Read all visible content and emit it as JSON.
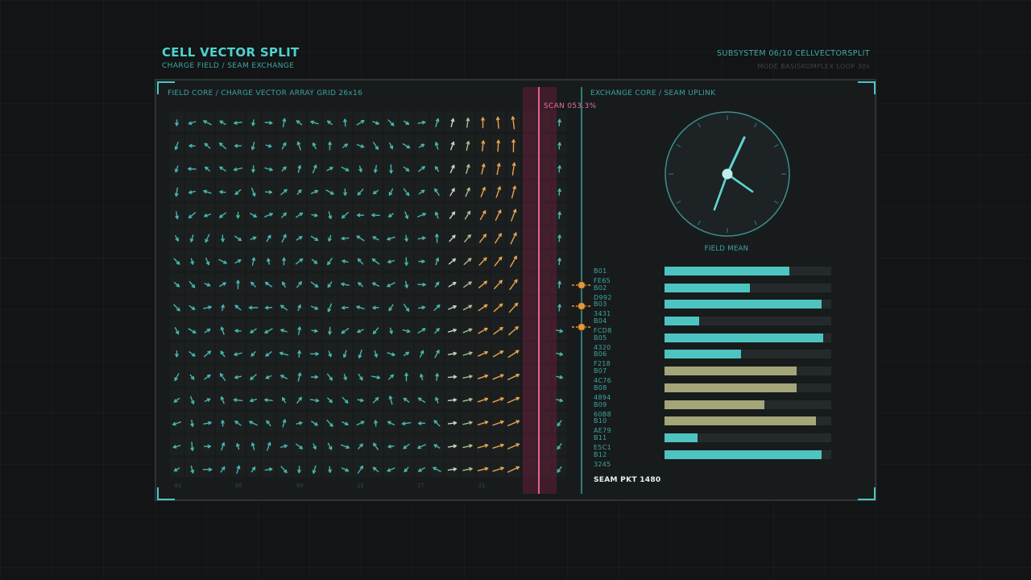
{
  "header": {
    "title": "CELL VECTOR SPLIT",
    "subtitle": "CHARGE FIELD / SEAM EXCHANGE",
    "subsystem": "SUBSYSTEM 06/10  CELLVECTORSPLIT",
    "mode": "MODE BASISKOMPLEX  LOOP 30s"
  },
  "left_panel": {
    "label": "FIELD CORE / CHARGE VECTOR ARRAY  GRID 26x16",
    "scan_label": "SCAN 053.3%",
    "scan_progress_percent": 53.3,
    "column_ticks": [
      "01",
      "05",
      "09",
      "13",
      "17",
      "21"
    ],
    "grid_cols": 26,
    "grid_rows": 16,
    "arrow_colors": {
      "cool": "#46b6b2",
      "warm": "#e7a44e"
    }
  },
  "right_panel": {
    "label": "EXCHANGE CORE / SEAM UPLINK",
    "dial_label": "FIELD MEAN",
    "dial": {
      "hand_long_deg": 25,
      "hand_short_a_deg": 200,
      "hand_short_b_deg": 125
    },
    "bars": [
      {
        "label": "B01 FE65",
        "value": 0.75,
        "color": "#4dc4c0"
      },
      {
        "label": "B02 D992",
        "value": 0.51,
        "color": "#4dc4c0"
      },
      {
        "label": "B03 3431",
        "value": 0.94,
        "color": "#4dc4c0"
      },
      {
        "label": "B04 FCD8",
        "value": 0.21,
        "color": "#4dc4c0"
      },
      {
        "label": "B05 4320",
        "value": 0.95,
        "color": "#4dc4c0"
      },
      {
        "label": "B06 F218",
        "value": 0.46,
        "color": "#4dc4c0"
      },
      {
        "label": "B07 4C76",
        "value": 0.79,
        "color": "#a4a67a"
      },
      {
        "label": "B08 4894",
        "value": 0.79,
        "color": "#a4a67a"
      },
      {
        "label": "B09 60B8",
        "value": 0.6,
        "color": "#a4a67a"
      },
      {
        "label": "B10 AE79",
        "value": 0.91,
        "color": "#a4a67a"
      },
      {
        "label": "B11 E5C1",
        "value": 0.2,
        "color": "#4dc4c0"
      },
      {
        "label": "B12 3245",
        "value": 0.94,
        "color": "#4dc4c0"
      }
    ],
    "seam_packet": "SEAM PKT 1480"
  }
}
